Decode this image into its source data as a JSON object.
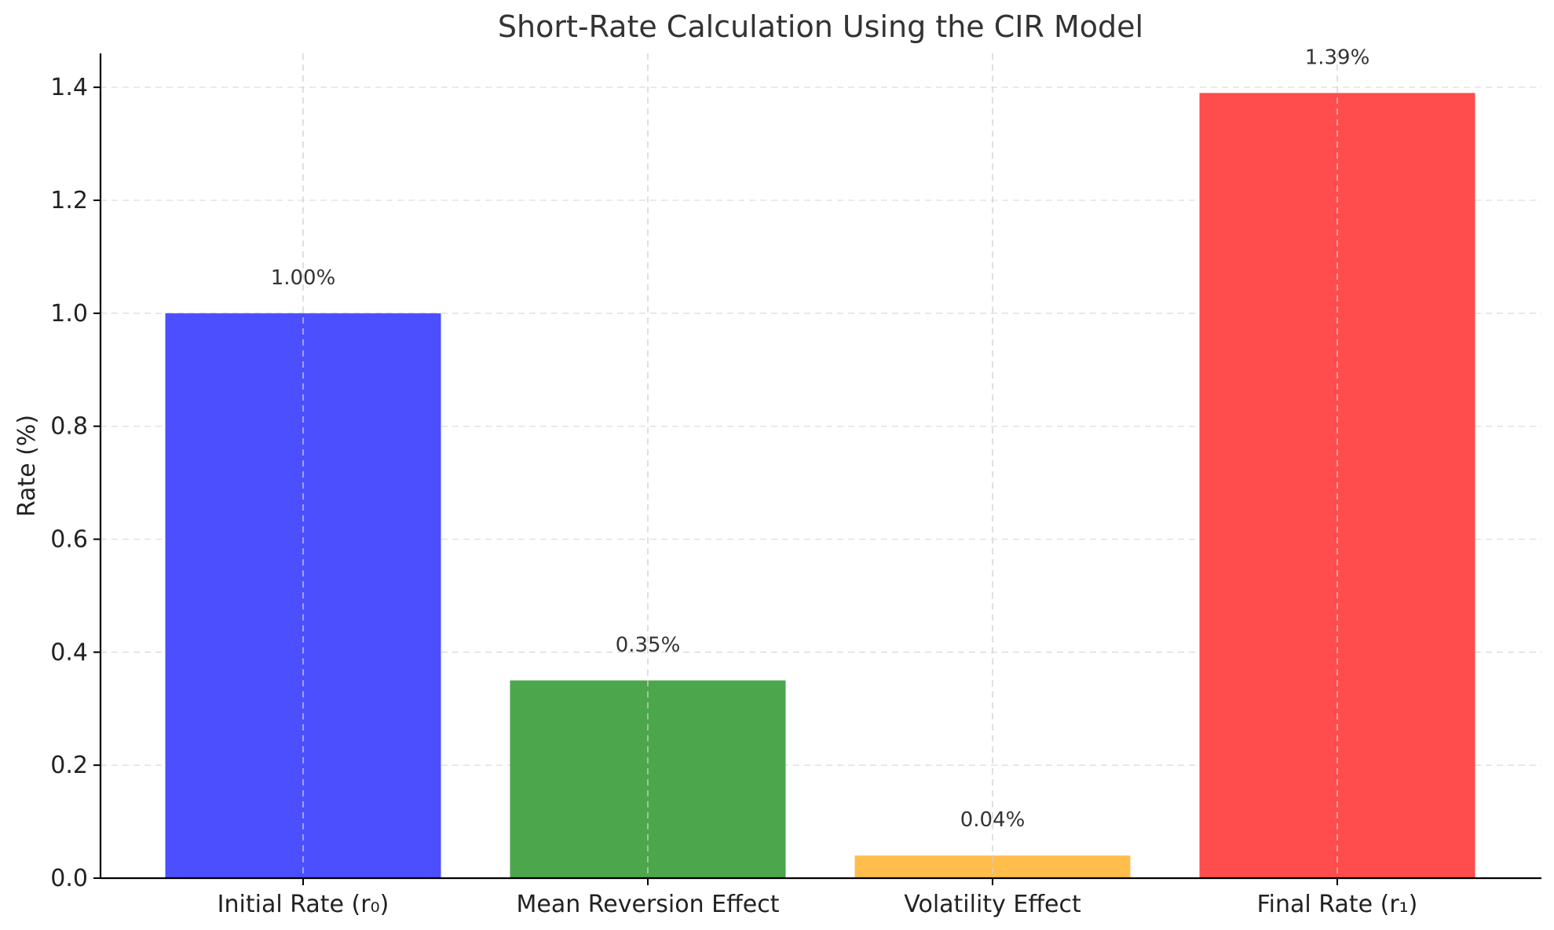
{
  "chart_data": {
    "type": "bar",
    "title": "Short-Rate Calculation Using the CIR Model",
    "xlabel": "",
    "ylabel": "Rate (%)",
    "categories": [
      "Initial Rate (r₀)",
      "Mean Reversion Effect",
      "Volatility Effect",
      "Final Rate (r₁)"
    ],
    "values": [
      1.0,
      0.35,
      0.04,
      1.39
    ],
    "data_labels": [
      "1.00%",
      "0.35%",
      "0.04%",
      "1.39%"
    ],
    "colors": [
      "#4b4ffe",
      "#4ca64c",
      "#ffbd4c",
      "#ff4d4d"
    ],
    "ylim": [
      0,
      1.46
    ],
    "yticks": [
      0.0,
      0.2,
      0.4,
      0.6,
      0.8,
      1.0,
      1.2,
      1.4
    ],
    "ytick_labels": [
      "0.0",
      "0.2",
      "0.4",
      "0.6",
      "0.8",
      "1.0",
      "1.2",
      "1.4"
    ],
    "grid": true,
    "legend": "none"
  }
}
